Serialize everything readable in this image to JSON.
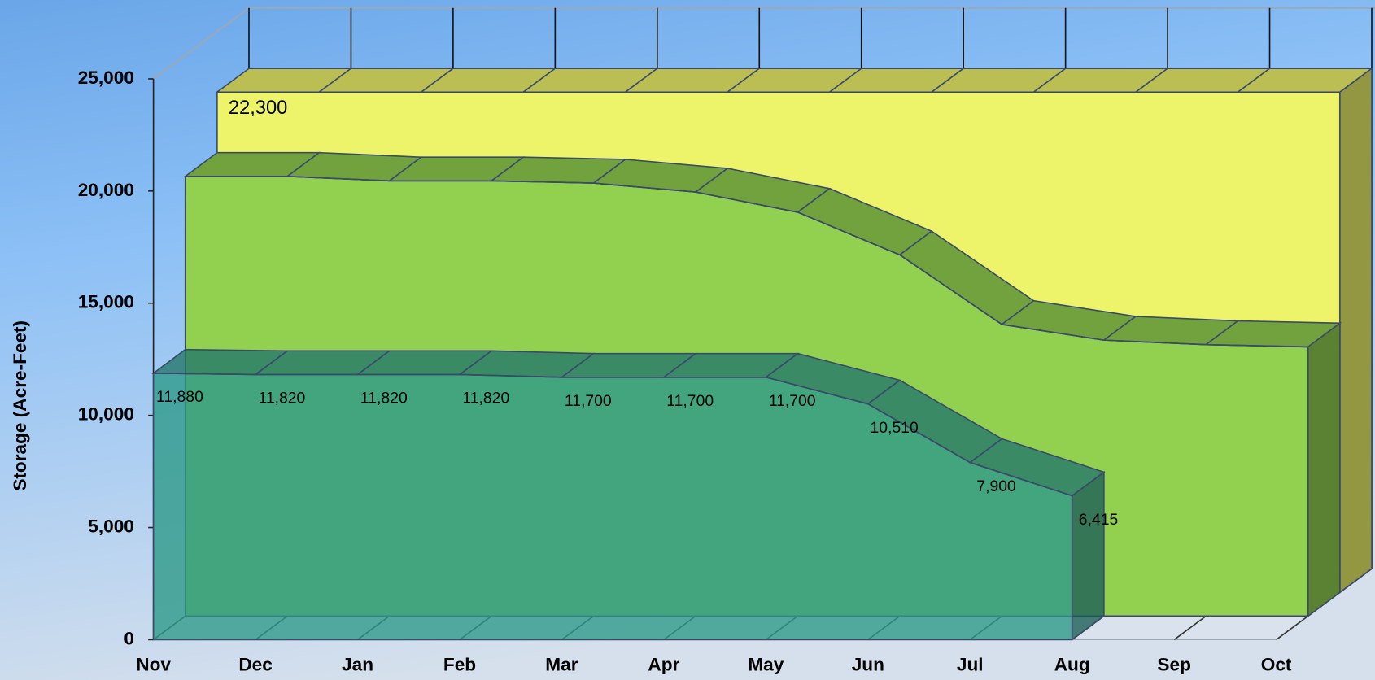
{
  "chart_data": {
    "type": "area3d",
    "y_label": "Storage (Acre-Feet)",
    "categories": [
      "Nov",
      "Dec",
      "Jan",
      "Feb",
      "Mar",
      "Apr",
      "May",
      "Jun",
      "Jul",
      "Aug",
      "Sep",
      "Oct"
    ],
    "ylim": [
      0,
      25000
    ],
    "yticks": [
      0,
      {
        "value": 5000,
        "label": "5,000"
      },
      {
        "value": 10000,
        "label": "10,000"
      },
      {
        "value": 15000,
        "label": "15,000"
      },
      {
        "value": 20000,
        "label": "20,000"
      },
      {
        "value": 25000,
        "label": "25,000"
      }
    ],
    "series": [
      {
        "color": "#eef46a",
        "values": [
          22300,
          22300,
          22300,
          22300,
          22300,
          22300,
          22300,
          22300,
          22300,
          22300,
          22300,
          22300
        ],
        "value_labels": [
          "22,300",
          null,
          null,
          null,
          null,
          null,
          null,
          null,
          null,
          null,
          null,
          null
        ]
      },
      {
        "color": "#92d050",
        "values": [
          19600,
          19600,
          19400,
          19400,
          19300,
          18900,
          18000,
          16100,
          13000,
          12300,
          12100,
          12000
        ]
      },
      {
        "color": "#2e9a8a",
        "values": [
          11880,
          11820,
          11820,
          11820,
          11700,
          11700,
          11700,
          10510,
          7900,
          6415,
          null,
          null
        ],
        "value_labels": [
          "11,880",
          "11,820",
          "11,820",
          "11,820",
          "11,700",
          "11,700",
          "11,700",
          "10,510",
          "7,900",
          "6,415",
          null,
          null
        ]
      }
    ]
  }
}
